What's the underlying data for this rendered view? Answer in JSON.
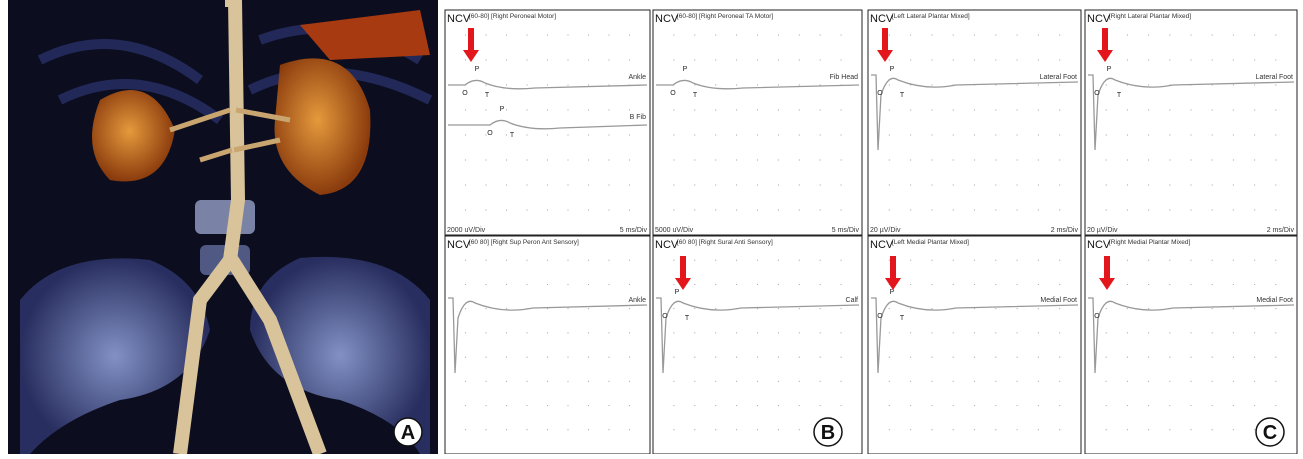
{
  "panel_labels": [
    "A",
    "B",
    "C"
  ],
  "traces": [
    {
      "prefix": "NCV",
      "header": "[60-80] [Right Peroneal Motor]",
      "sites": [
        {
          "label": "Ankle",
          "markers": [
            "P",
            "O",
            "T"
          ]
        },
        {
          "label": "B Fib",
          "markers": [
            "P",
            "O",
            "T"
          ]
        }
      ],
      "sensitivity": "2000 uV/Div",
      "sweep": "5 ms/Div"
    },
    {
      "prefix": "NCV",
      "header": "[60-80] [Right Peroneal TA Motor]",
      "sites": [
        {
          "label": "Fib Head",
          "markers": [
            "P",
            "O",
            "T"
          ]
        }
      ],
      "sensitivity": "5000 uV/Div",
      "sweep": "5 ms/Div"
    },
    {
      "prefix": "NCV",
      "header": "[Left Lateral Plantar Mixed]",
      "sites": [
        {
          "label": "Lateral Foot",
          "markers": [
            "P",
            "O",
            "T"
          ]
        }
      ],
      "sensitivity": "20 µV/Div",
      "sweep": "2 ms/Div"
    },
    {
      "prefix": "NCV",
      "header": "[Right Lateral Plantar Mixed]",
      "sites": [
        {
          "label": "Lateral Foot",
          "markers": [
            "P",
            "O",
            "T"
          ]
        }
      ],
      "sensitivity": "20 µV/Div",
      "sweep": "2 ms/Div"
    },
    {
      "prefix": "NCV",
      "header": "[60 80] [Right Sup Peron Ant Sensory]",
      "sites": [
        {
          "label": "Ankle",
          "markers": []
        }
      ]
    },
    {
      "prefix": "NCV",
      "header": "[60 80] [Right Sural Anti Sensory]",
      "sites": [
        {
          "label": "Calf",
          "markers": [
            "P",
            "O",
            "T"
          ]
        }
      ]
    },
    {
      "prefix": "NCV",
      "header": "[Left Medial Plantar Mixed]",
      "sites": [
        {
          "label": "Medial Foot",
          "markers": [
            "P",
            "O",
            "T"
          ]
        }
      ]
    },
    {
      "prefix": "NCV",
      "header": "[Right Medial Plantar Mixed]",
      "sites": [
        {
          "label": "Medial Foot",
          "markers": [
            "O"
          ]
        }
      ]
    }
  ]
}
